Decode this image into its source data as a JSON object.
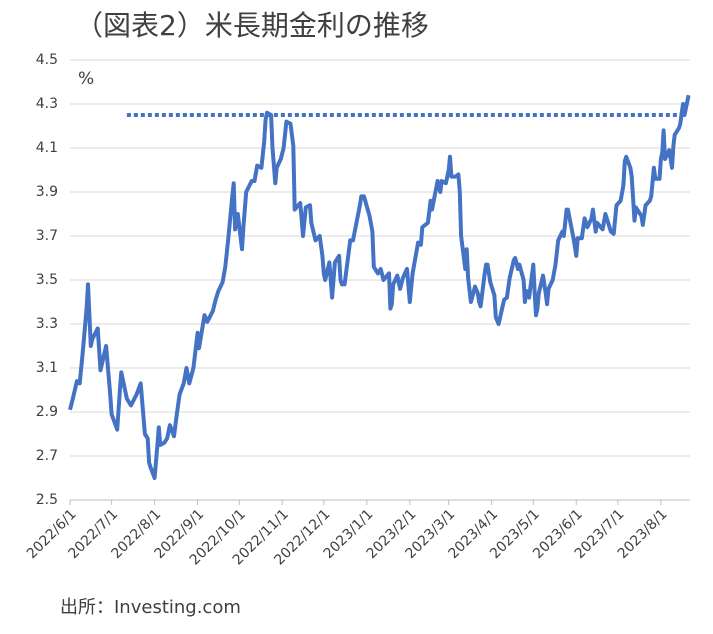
{
  "chart_data": {
    "type": "line",
    "title": "（図表2）米長期金利の推移",
    "y_unit": "%",
    "source": "出所：Investing.com",
    "x": [
      "2022/6/1",
      "2022/6/3",
      "2022/6/6",
      "2022/6/8",
      "2022/6/10",
      "2022/6/13",
      "2022/6/14",
      "2022/6/16",
      "2022/6/17",
      "2022/6/21",
      "2022/6/23",
      "2022/6/27",
      "2022/6/30",
      "2022/7/1",
      "2022/7/5",
      "2022/7/7",
      "2022/7/8",
      "2022/7/12",
      "2022/7/15",
      "2022/7/19",
      "2022/7/22",
      "2022/7/25",
      "2022/7/27",
      "2022/7/28",
      "2022/7/29",
      "2022/8/1",
      "2022/8/3",
      "2022/8/4",
      "2022/8/5",
      "2022/8/8",
      "2022/8/10",
      "2022/8/12",
      "2022/8/15",
      "2022/8/17",
      "2022/8/19",
      "2022/8/22",
      "2022/8/24",
      "2022/8/26",
      "2022/8/29",
      "2022/9/1",
      "2022/9/2",
      "2022/9/6",
      "2022/9/8",
      "2022/9/12",
      "2022/9/14",
      "2022/9/16",
      "2022/9/19",
      "2022/9/21",
      "2022/9/23",
      "2022/9/26",
      "2022/9/27",
      "2022/9/28",
      "2022/9/30",
      "2022/10/3",
      "2022/10/4",
      "2022/10/6",
      "2022/10/10",
      "2022/10/12",
      "2022/10/14",
      "2022/10/17",
      "2022/10/19",
      "2022/10/20",
      "2022/10/21",
      "2022/10/24",
      "2022/10/25",
      "2022/10/27",
      "2022/10/28",
      "2022/10/31",
      "2022/11/2",
      "2022/11/3",
      "2022/11/4",
      "2022/11/7",
      "2022/11/9",
      "2022/11/10",
      "2022/11/14",
      "2022/11/15",
      "2022/11/16",
      "2022/11/18",
      "2022/11/21",
      "2022/11/22",
      "2022/11/25",
      "2022/11/28",
      "2022/11/30",
      "2022/12/1",
      "2022/12/2",
      "2022/12/5",
      "2022/12/7",
      "2022/12/9",
      "2022/12/12",
      "2022/12/13",
      "2022/12/14",
      "2022/12/16",
      "2022/12/20",
      "2022/12/22",
      "2022/12/27",
      "2022/12/28",
      "2022/12/30",
      "2023/1/3",
      "2023/1/5",
      "2023/1/6",
      "2023/1/9",
      "2023/1/11",
      "2023/1/13",
      "2023/1/17",
      "2023/1/18",
      "2023/1/19",
      "2023/1/20",
      "2023/1/23",
      "2023/1/25",
      "2023/1/27",
      "2023/1/30",
      "2023/2/1",
      "2023/2/3",
      "2023/2/7",
      "2023/2/9",
      "2023/2/10",
      "2023/2/14",
      "2023/2/16",
      "2023/2/17",
      "2023/2/21",
      "2023/2/23",
      "2023/2/24",
      "2023/2/27",
      "2023/3/1",
      "2023/3/2",
      "2023/3/3",
      "2023/3/6",
      "2023/3/8",
      "2023/3/9",
      "2023/3/10",
      "2023/3/13",
      "2023/3/14",
      "2023/3/15",
      "2023/3/17",
      "2023/3/20",
      "2023/3/22",
      "2023/3/23",
      "2023/3/24",
      "2023/3/27",
      "2023/3/28",
      "2023/3/29",
      "2023/3/31",
      "2023/4/3",
      "2023/4/4",
      "2023/4/6",
      "2023/4/10",
      "2023/4/12",
      "2023/4/14",
      "2023/4/17",
      "2023/4/18",
      "2023/4/20",
      "2023/4/21",
      "2023/4/24",
      "2023/4/25",
      "2023/4/26",
      "2023/4/28",
      "2023/5/1",
      "2023/5/2",
      "2023/5/3",
      "2023/5/4",
      "2023/5/5",
      "2023/5/8",
      "2023/5/10",
      "2023/5/11",
      "2023/5/12",
      "2023/5/15",
      "2023/5/17",
      "2023/5/19",
      "2023/5/22",
      "2023/5/23",
      "2023/5/25",
      "2023/5/26",
      "2023/5/30",
      "2023/6/1",
      "2023/6/2",
      "2023/6/5",
      "2023/6/7",
      "2023/6/9",
      "2023/6/12",
      "2023/6/13",
      "2023/6/15",
      "2023/6/16",
      "2023/6/20",
      "2023/6/22",
      "2023/6/26",
      "2023/6/28",
      "2023/6/30",
      "2023/7/3",
      "2023/7/5",
      "2023/7/6",
      "2023/7/7",
      "2023/7/10",
      "2023/7/11",
      "2023/7/13",
      "2023/7/14",
      "2023/7/18",
      "2023/7/19",
      "2023/7/21",
      "2023/7/24",
      "2023/7/25",
      "2023/7/27",
      "2023/7/28",
      "2023/7/31",
      "2023/8/1",
      "2023/8/2",
      "2023/8/3",
      "2023/8/4",
      "2023/8/7",
      "2023/8/9",
      "2023/8/10",
      "2023/8/11",
      "2023/8/14",
      "2023/8/15",
      "2023/8/16",
      "2023/8/17",
      "2023/8/18",
      "2023/8/21"
    ],
    "series": [
      {
        "color": "#4472c4",
        "values": [
          2.91,
          2.96,
          3.04,
          3.03,
          3.16,
          3.37,
          3.48,
          3.2,
          3.23,
          3.28,
          3.09,
          3.2,
          2.98,
          2.89,
          2.82,
          3.0,
          3.08,
          2.96,
          2.93,
          2.98,
          3.03,
          2.8,
          2.78,
          2.67,
          2.65,
          2.6,
          2.75,
          2.83,
          2.75,
          2.76,
          2.78,
          2.84,
          2.79,
          2.89,
          2.98,
          3.03,
          3.1,
          3.03,
          3.1,
          3.26,
          3.19,
          3.34,
          3.31,
          3.36,
          3.41,
          3.45,
          3.49,
          3.56,
          3.68,
          3.88,
          3.94,
          3.73,
          3.8,
          3.64,
          3.74,
          3.9,
          3.95,
          3.95,
          4.02,
          4.01,
          4.13,
          4.23,
          4.26,
          4.25,
          4.1,
          3.94,
          4.01,
          4.05,
          4.1,
          4.16,
          4.22,
          4.21,
          4.11,
          3.82,
          3.85,
          3.78,
          3.7,
          3.83,
          3.84,
          3.76,
          3.68,
          3.7,
          3.61,
          3.53,
          3.5,
          3.58,
          3.42,
          3.58,
          3.61,
          3.5,
          3.48,
          3.48,
          3.68,
          3.68,
          3.84,
          3.88,
          3.88,
          3.79,
          3.72,
          3.56,
          3.53,
          3.55,
          3.5,
          3.53,
          3.37,
          3.39,
          3.48,
          3.52,
          3.46,
          3.51,
          3.55,
          3.4,
          3.53,
          3.67,
          3.66,
          3.74,
          3.76,
          3.86,
          3.82,
          3.95,
          3.9,
          3.95,
          3.94,
          4.0,
          4.06,
          3.97,
          3.97,
          3.98,
          3.9,
          3.7,
          3.55,
          3.64,
          3.51,
          3.4,
          3.47,
          3.44,
          3.4,
          3.38,
          3.53,
          3.57,
          3.57,
          3.49,
          3.43,
          3.33,
          3.3,
          3.41,
          3.42,
          3.51,
          3.59,
          3.6,
          3.55,
          3.57,
          3.5,
          3.4,
          3.45,
          3.42,
          3.57,
          3.44,
          3.34,
          3.37,
          3.44,
          3.52,
          3.44,
          3.39,
          3.46,
          3.5,
          3.57,
          3.68,
          3.72,
          3.7,
          3.82,
          3.82,
          3.69,
          3.61,
          3.69,
          3.69,
          3.78,
          3.74,
          3.78,
          3.82,
          3.72,
          3.76,
          3.73,
          3.8,
          3.72,
          3.71,
          3.84,
          3.86,
          3.93,
          4.04,
          4.06,
          4.01,
          3.97,
          3.77,
          3.83,
          3.79,
          3.75,
          3.84,
          3.86,
          3.88,
          4.01,
          3.96,
          3.96,
          4.05,
          4.08,
          4.18,
          4.05,
          4.09,
          4.01,
          4.11,
          4.16,
          4.19,
          4.21,
          4.26,
          4.3,
          4.25,
          4.34
        ]
      }
    ],
    "reference_line": {
      "value": 4.25,
      "x": [
        "2022/7/12",
        "2023/8/18"
      ],
      "color": "#4472c4"
    },
    "xlim": [
      "2022/6/1",
      "2023/8/22"
    ],
    "xticks": [
      "2022/6/1",
      "2022/7/1",
      "2022/8/1",
      "2022/9/1",
      "2022/10/1",
      "2022/11/1",
      "2022/12/1",
      "2023/1/1",
      "2023/2/1",
      "2023/3/1",
      "2023/4/1",
      "2023/5/1",
      "2023/6/1",
      "2023/7/1",
      "2023/8/1"
    ],
    "ylim": [
      2.5,
      4.5
    ],
    "yticks": [
      2.5,
      2.7,
      2.9,
      3.1,
      3.3,
      3.5,
      3.7,
      3.9,
      4.1,
      4.3,
      4.5
    ],
    "grid": true
  }
}
